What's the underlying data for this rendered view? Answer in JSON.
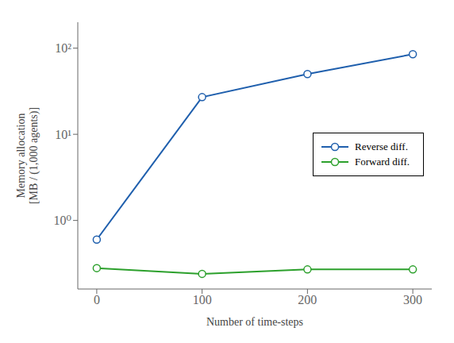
{
  "chart_data": {
    "type": "line",
    "x": [
      0,
      100,
      200,
      300
    ],
    "series": [
      {
        "name": "Reverse diff.",
        "color": "#1f5fad",
        "values": [
          0.6,
          27.0,
          50.0,
          85.0
        ],
        "marker": "o"
      },
      {
        "name": "Forward diff.",
        "color": "#2ca02c",
        "values": [
          0.28,
          0.24,
          0.27,
          0.27
        ],
        "marker": "o"
      }
    ],
    "xlabel": "Number of time-steps",
    "ylabel": "Memory allocation\n[MB / (1,000 agents)]",
    "xlim": [
      -18,
      318
    ],
    "ylim": [
      0.16,
      200
    ],
    "xticks": [
      0,
      100,
      200,
      300
    ],
    "yticks": [
      {
        "value": 1,
        "label": "10⁰"
      },
      {
        "value": 10,
        "label": "10¹"
      },
      {
        "value": 100,
        "label": "10²"
      }
    ],
    "log": "y",
    "legend": "center right"
  }
}
